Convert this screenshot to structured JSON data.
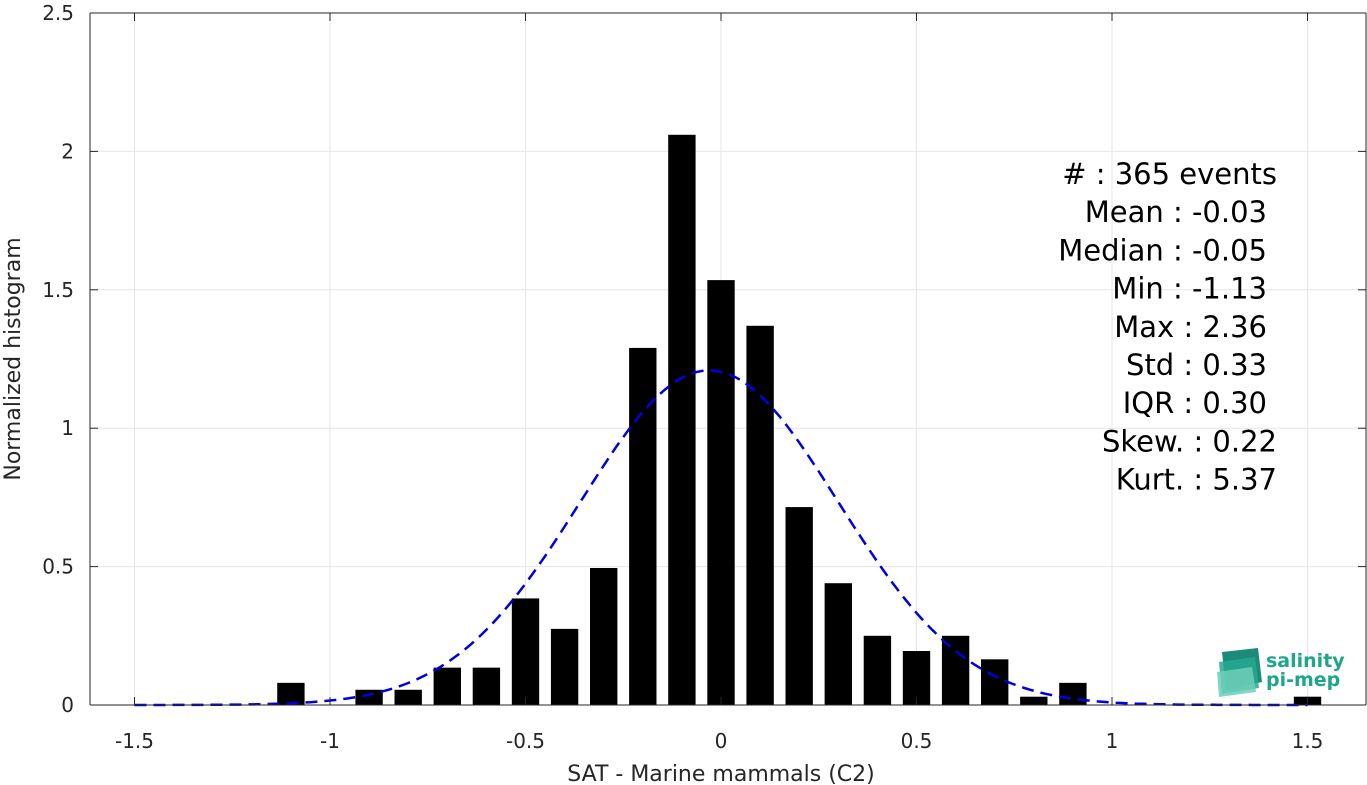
{
  "chart_data": {
    "type": "bar",
    "xlabel": "SAT - Marine mammals (C2)",
    "ylabel": "Normalized histogram",
    "xlim": [
      -1.6,
      1.6
    ],
    "ylim": [
      0,
      2.5
    ],
    "xticks": [
      -1.5,
      -1,
      -0.5,
      0,
      0.5,
      1,
      1.5
    ],
    "xtick_labels": [
      "-1.5",
      "-1",
      "-0.5",
      "0",
      "0.5",
      "1",
      "1.5"
    ],
    "yticks": [
      0,
      0.5,
      1,
      1.5,
      2,
      2.5
    ],
    "ytick_labels": [
      "0",
      "0.5",
      "1",
      "1.5",
      "2",
      "2.5"
    ],
    "grid": true,
    "bin_width": 0.1,
    "bar_width_fraction": 0.7,
    "bar_color": "#000000",
    "bars": {
      "x": [
        -1.1,
        -0.9,
        -0.8,
        -0.7,
        -0.6,
        -0.5,
        -0.4,
        -0.3,
        -0.2,
        -0.1,
        0.0,
        0.1,
        0.2,
        0.3,
        0.4,
        0.5,
        0.6,
        0.7,
        0.8,
        0.9,
        1.5
      ],
      "values": [
        0.08,
        0.055,
        0.055,
        0.135,
        0.135,
        0.385,
        0.275,
        0.495,
        1.29,
        2.06,
        1.535,
        1.37,
        0.715,
        0.44,
        0.25,
        0.195,
        0.25,
        0.165,
        0.03,
        0.08,
        0.03
      ]
    },
    "gaussian_fit": {
      "mean": -0.03,
      "std": 0.33,
      "x_range": [
        -1.5,
        1.5
      ],
      "color": "#0000e0",
      "style": "dashed"
    },
    "stats_lines": [
      "#  : 365 events",
      "Mean : -0.03",
      "Median : -0.05",
      "Min : -1.13",
      "Max : 2.36",
      "Std : 0.33",
      "IQR : 0.30",
      "Skew. : 0.22",
      "Kurt. : 5.37"
    ]
  },
  "logo": {
    "line1": "salinity",
    "line2": "pi-mep",
    "color": "#1fa58c"
  }
}
